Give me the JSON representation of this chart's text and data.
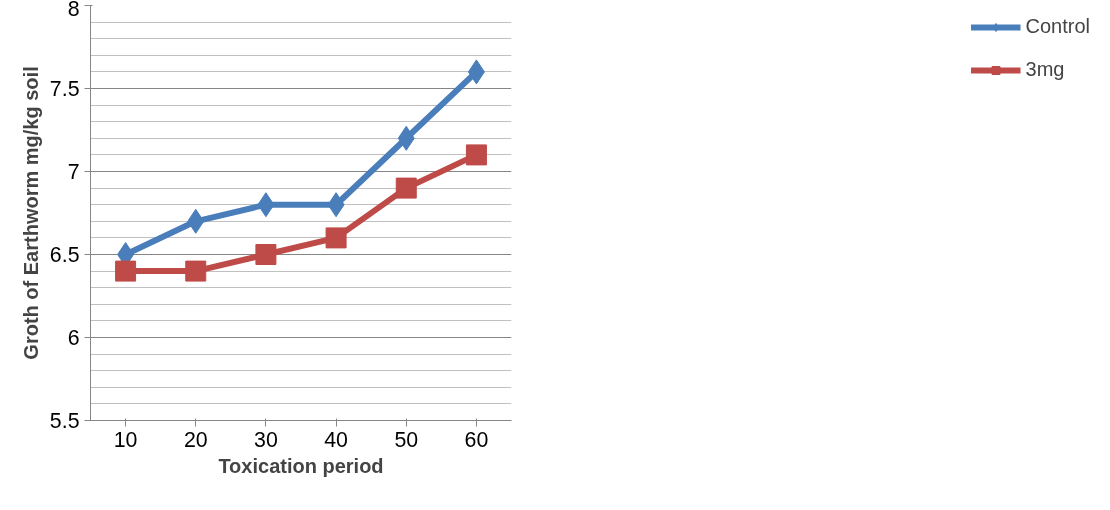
{
  "chart_data": {
    "type": "line",
    "xlabel": "Toxication period",
    "ylabel": "Groth of Earthworm mg/kg soil",
    "categories": [
      "10",
      "20",
      "30",
      "40",
      "50",
      "60"
    ],
    "series": [
      {
        "name": "Control",
        "color": "#4a7ebb",
        "marker": "diamond",
        "values": [
          6.5,
          6.7,
          6.8,
          6.8,
          7.2,
          7.6
        ]
      },
      {
        "name": "3mg",
        "color": "#be4b48",
        "marker": "square",
        "values": [
          6.4,
          6.4,
          6.5,
          6.6,
          6.9,
          7.1
        ]
      }
    ],
    "ylim": [
      5.5,
      8
    ],
    "yticks": [
      5.5,
      6,
      6.5,
      7,
      7.5,
      8
    ],
    "grid": "y",
    "legend": "right"
  }
}
